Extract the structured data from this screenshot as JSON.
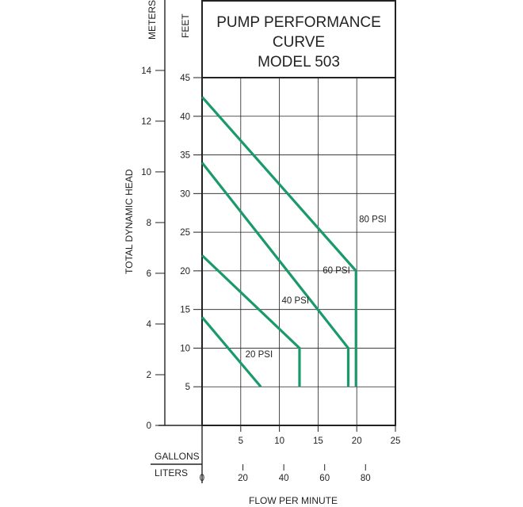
{
  "chart_data": {
    "type": "line",
    "title_lines": [
      "PUMP PERFORMANCE",
      "CURVE",
      "MODEL 503"
    ],
    "y_left_label": "TOTAL DYNAMIC HEAD",
    "y_meters_unit": "METERS",
    "y_feet_unit": "FEET",
    "x_label": "FLOW PER MINUTE",
    "x_gallons_unit": "GALLONS",
    "x_liters_unit": "LITERS",
    "meters_ticks": [
      "0",
      "2",
      "4",
      "6",
      "8",
      "10",
      "12",
      "14"
    ],
    "feet_ticks": [
      "5",
      "10",
      "15",
      "20",
      "25",
      "30",
      "35",
      "40",
      "45"
    ],
    "gallons_ticks": [
      "5",
      "10",
      "15",
      "20",
      "25"
    ],
    "liters_ticks": [
      "0",
      "20",
      "40",
      "60",
      "80"
    ],
    "xlim_gallons": [
      0,
      25
    ],
    "ylim_feet": [
      0,
      45
    ],
    "grid": true,
    "series": [
      {
        "name": "20 PSI",
        "x": [
          0,
          7.6
        ],
        "y": [
          14,
          5
        ]
      },
      {
        "name": "40 PSI",
        "x": [
          0,
          12.6,
          12.6
        ],
        "y": [
          22,
          10,
          5
        ]
      },
      {
        "name": "60 PSI",
        "x": [
          0,
          18.9,
          18.9
        ],
        "y": [
          34,
          10,
          5
        ]
      },
      {
        "name": "80 PSI",
        "x": [
          0,
          19.9,
          19.9
        ],
        "y": [
          42.5,
          20,
          5
        ]
      }
    ],
    "series_label_anchors": [
      [
        5.6,
        8.8
      ],
      [
        10.3,
        15.8
      ],
      [
        15.6,
        19.7
      ],
      [
        20.3,
        26.3
      ]
    ]
  }
}
